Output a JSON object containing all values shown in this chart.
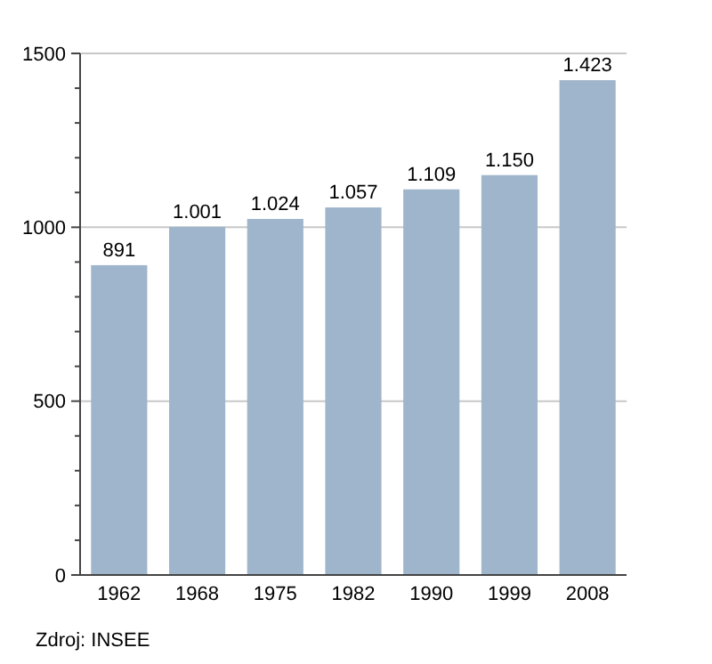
{
  "chart_data": {
    "type": "bar",
    "categories": [
      "1962",
      "1968",
      "1975",
      "1982",
      "1990",
      "1999",
      "2008"
    ],
    "values": [
      891,
      1001,
      1024,
      1057,
      1109,
      1150,
      1423
    ],
    "value_labels": [
      "891",
      "1.001",
      "1.024",
      "1.057",
      "1.109",
      "1.150",
      "1.423"
    ],
    "color": "#9fb5cc",
    "ylim": [
      0,
      1500
    ],
    "yticks": [
      0,
      {
        "value": 100,
        "label": null
      },
      {
        "value": 200,
        "label": null
      },
      {
        "value": 300,
        "label": null
      },
      {
        "value": 400,
        "label": null
      },
      500,
      {
        "value": 600,
        "label": null
      },
      {
        "value": 700,
        "label": null
      },
      {
        "value": 800,
        "label": null
      },
      {
        "value": 900,
        "label": null
      },
      1000,
      {
        "value": 1100,
        "label": null
      },
      {
        "value": 1200,
        "label": null
      },
      {
        "value": 1300,
        "label": null
      },
      {
        "value": 1400,
        "label": null
      },
      1500
    ],
    "grid": "y",
    "annotations": [
      "Zdroj: INSEE"
    ]
  }
}
